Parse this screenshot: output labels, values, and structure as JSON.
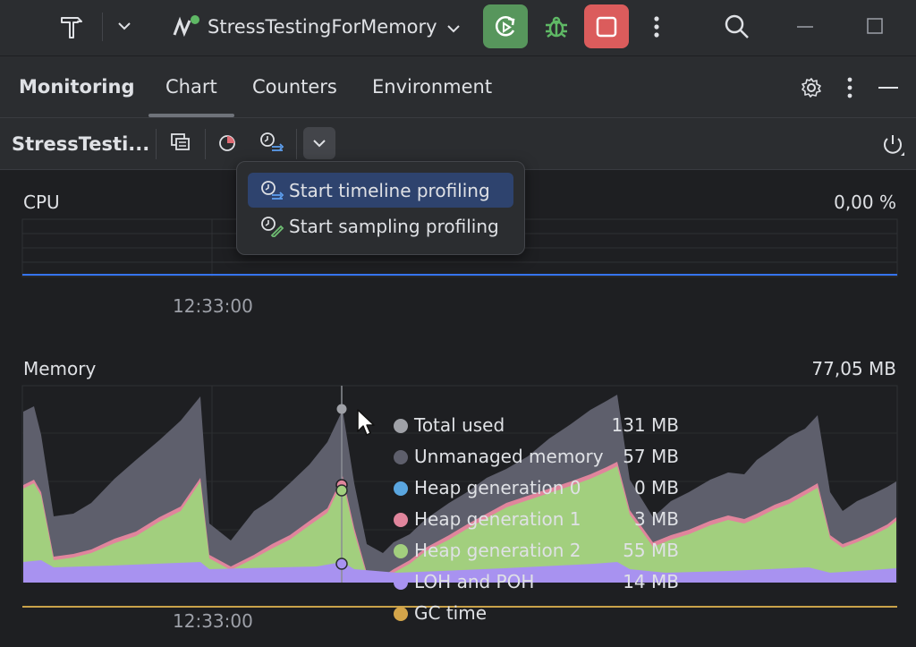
{
  "titlebar": {
    "run_config_name": "StressTestingForMemory",
    "icons": [
      "hammer-icon",
      "chevron-down-icon",
      "run-config-icon",
      "chevron-down-icon",
      "rerun-icon",
      "debug-icon",
      "stop-icon",
      "more-vertical-icon",
      "search-icon",
      "minimize-icon",
      "maximize-icon"
    ]
  },
  "toolwindow": {
    "title": "Monitoring",
    "tabs": [
      {
        "label": "Chart",
        "active": true
      },
      {
        "label": "Counters",
        "active": false
      },
      {
        "label": "Environment",
        "active": false
      }
    ],
    "icons": [
      "gear-icon",
      "more-vertical-icon",
      "hide-icon"
    ]
  },
  "toolbar": {
    "process_name": "StressTesti...",
    "icons": [
      "snapshot-icon",
      "memory-profile-icon",
      "timeline-profile-icon",
      "chevron-down-icon",
      "power-icon"
    ]
  },
  "popup": {
    "items": [
      {
        "label": "Start timeline profiling",
        "selected": true
      },
      {
        "label": "Start sampling profiling",
        "selected": false
      }
    ]
  },
  "cpu": {
    "label": "CPU",
    "value": "0,00 %",
    "time_label": "12:33:00",
    "line_color": "#3574f0"
  },
  "memory": {
    "label": "Memory",
    "value": "77,05 MB",
    "time_label": "12:33:00"
  },
  "legend": [
    {
      "name": "Total used",
      "value": "131 MB",
      "color": "#9fa1a7"
    },
    {
      "name": "Unmanaged memory",
      "value": "57 MB",
      "color": "#5e5f6c"
    },
    {
      "name": "Heap generation 0",
      "value": "0 MB",
      "color": "#5aa6e0"
    },
    {
      "name": "Heap generation 1",
      "value": "3 MB",
      "color": "#e0859c"
    },
    {
      "name": "Heap generation 2",
      "value": "55 MB",
      "color": "#a2cf7e"
    },
    {
      "name": "LOH and POH",
      "value": "14 MB",
      "color": "#a892f0"
    },
    {
      "name": "GC time",
      "value": "",
      "color": "#d4a54a"
    }
  ],
  "colors": {
    "unmanaged": "#5e5f6c",
    "gen1": "#e0859c",
    "gen2": "#a2cf7e",
    "loh": "#a892f0",
    "gc_line": "#c9a24a",
    "cursor_line": "#8a8d93"
  }
}
